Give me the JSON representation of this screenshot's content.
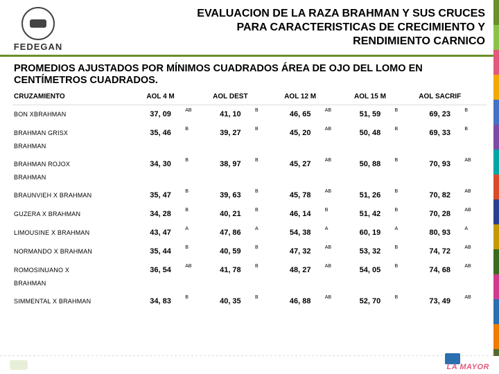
{
  "logo_text": "FEDEGAN",
  "title_line1": "EVALUACION DE LA RAZA BRAHMAN Y SUS CRUCES",
  "title_line2": "PARA CARACTERISTICAS DE CRECIMIENTO Y",
  "title_line3": "RENDIMIENTO CARNICO",
  "subtitle": "PROMEDIOS AJUSTADOS POR MÍNIMOS CUADRADOS ÁREA DE OJO DEL LOMO  EN CENTÍMETROS CUADRADOS.",
  "columns": {
    "cruz": "CRUZAMIENTO",
    "c1": "AOL 4 M",
    "c2": "AOL DEST",
    "c3": "AOL 12 M",
    "c4": "AOL 15 M",
    "c5": "AOL SACRIF"
  },
  "rows": [
    {
      "cruz": "BON XBRAHMAN",
      "v": [
        "37, 09",
        "41, 10",
        "46, 65",
        "51, 59",
        "69, 23"
      ],
      "s": [
        "AB",
        "B",
        "AB",
        "B",
        "B"
      ]
    },
    {
      "cruz": "BRAHMAN GRISX",
      "extra": "BRAHMAN",
      "v": [
        "35, 46",
        "39, 27",
        "45, 20",
        "50, 48",
        "69, 33"
      ],
      "s": [
        "B",
        "B",
        "AB",
        "B",
        "B"
      ]
    },
    {
      "cruz": "BRAHMAN ROJOX",
      "extra": "BRAHMAN",
      "v": [
        "34, 30",
        "38, 97",
        "45, 27",
        "50, 88",
        "70, 93"
      ],
      "s": [
        "B",
        "B",
        "AB",
        "B",
        "AB"
      ]
    },
    {
      "cruz": "BRAUNVIEH X BRAHMAN",
      "v": [
        "35, 47",
        "39, 63",
        "45, 78",
        "51, 26",
        "70, 82"
      ],
      "s": [
        "B",
        "B",
        "AB",
        "B",
        "AB"
      ]
    },
    {
      "cruz": "GUZERA X BRAHMAN",
      "v": [
        "34, 28",
        "40, 21",
        "46, 14",
        "51, 42",
        "70, 28"
      ],
      "s": [
        "B",
        "B",
        "B",
        "B",
        "AB"
      ]
    },
    {
      "cruz": "LIMOUSINE X BRAHMAN",
      "v": [
        "43, 47",
        "47, 86",
        "54, 38",
        "60, 19",
        "80, 93"
      ],
      "s": [
        "A",
        "A",
        "A",
        "A",
        "A"
      ]
    },
    {
      "cruz": "NORMANDO X BRAHMAN",
      "v": [
        "35, 44",
        "40, 59",
        "47, 32",
        "53, 32",
        "74, 72"
      ],
      "s": [
        "B",
        "B",
        "AB",
        "B",
        "AB"
      ]
    },
    {
      "cruz": "ROMOSINUANO X",
      "extra": "BRAHMAN",
      "v": [
        "36, 54",
        "41, 78",
        "48, 27",
        "54, 05",
        "74, 68"
      ],
      "s": [
        "AB",
        "B",
        "AB",
        "B",
        "AB"
      ]
    },
    {
      "cruz": "SIMMENTAL X BRAHMAN",
      "v": [
        "34, 83",
        "40, 35",
        "46, 88",
        "52, 70",
        "73, 49"
      ],
      "s": [
        "B",
        "B",
        "AB",
        "B",
        "AB"
      ]
    }
  ],
  "stripe_colors": [
    "#6a8f2b",
    "#8bc34a",
    "#e15a7b",
    "#f2a900",
    "#4472c4",
    "#7c4ca0",
    "#00a6a6",
    "#d94b2b",
    "#2a3f8f",
    "#c49a00",
    "#3a6b1f",
    "#d13c8c",
    "#2a6fb0",
    "#f07c00",
    "#556b2f"
  ],
  "footer_brand": "LA MAYOR"
}
